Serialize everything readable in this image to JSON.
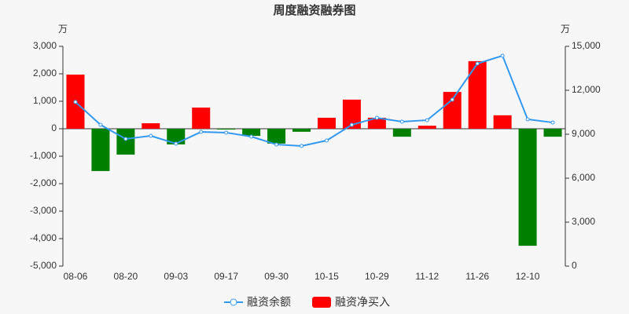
{
  "chart_data": {
    "type": "bar-line",
    "title": "周度融资融券图",
    "y_unit": "万",
    "y2_unit": "万",
    "categories": [
      "08-06",
      null,
      "08-20",
      null,
      "09-03",
      null,
      "09-17",
      null,
      "09-30",
      null,
      "10-15",
      null,
      "10-29",
      null,
      "11-12",
      null,
      "11-26",
      null,
      "12-10",
      null
    ],
    "series": [
      {
        "name": "融资余额",
        "type": "line",
        "axis": "y2",
        "color": "#3399ee",
        "values": [
          11200,
          9640,
          8680,
          8890,
          8360,
          9160,
          9110,
          8840,
          8300,
          8200,
          8570,
          9640,
          10120,
          9860,
          9960,
          11360,
          13820,
          14360,
          10020,
          9800
        ]
      },
      {
        "name": "融资净买入",
        "type": "bar",
        "axis": "y",
        "color": "#ff0000",
        "negative_color": "#008000",
        "values": [
          1970,
          -1540,
          -940,
          200,
          -570,
          770,
          -30,
          -260,
          -540,
          -110,
          400,
          1060,
          400,
          -290,
          110,
          1340,
          2460,
          490,
          -4260,
          -290
        ]
      }
    ],
    "ylim": [
      -5000,
      3000
    ],
    "yticks": [
      {
        "value": -5000,
        "label": "-5,000"
      },
      {
        "value": -4000,
        "label": "-4,000"
      },
      {
        "value": -3000,
        "label": "-3,000"
      },
      {
        "value": -2000,
        "label": "-2,000"
      },
      {
        "value": -1000,
        "label": "-1,000"
      },
      0,
      {
        "value": 1000,
        "label": "1,000"
      },
      {
        "value": 2000,
        "label": "2,000"
      },
      {
        "value": 3000,
        "label": "3,000"
      }
    ],
    "y2lim": [
      0,
      15000
    ],
    "y2ticks": [
      0,
      {
        "value": 3000,
        "label": "3,000"
      },
      {
        "value": 6000,
        "label": "6,000"
      },
      {
        "value": 9000,
        "label": "9,000"
      },
      {
        "value": 12000,
        "label": "12,000"
      },
      {
        "value": 15000,
        "label": "15,000"
      }
    ]
  }
}
